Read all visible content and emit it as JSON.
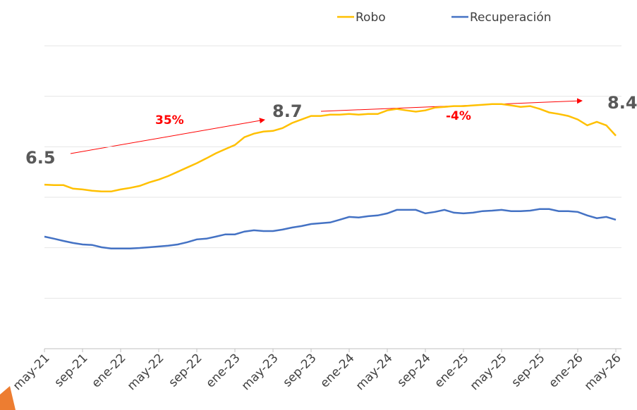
{
  "chart_data": {
    "type": "line",
    "categories": [
      "may-21",
      null,
      null,
      null,
      "sep-21",
      null,
      null,
      null,
      "ene-22",
      null,
      null,
      null,
      "may-22",
      null,
      null,
      null,
      "sep-22",
      null,
      null,
      null,
      "ene-23",
      null,
      null,
      null,
      "may-23",
      null,
      null,
      null,
      "sep-23",
      null,
      null,
      null,
      "ene-24",
      null,
      null,
      null,
      "may-24",
      null,
      null,
      null,
      "sep-24",
      null,
      null,
      null,
      "ene-25",
      null,
      null,
      null,
      "may-25",
      null,
      null,
      null,
      "sep-25",
      null,
      null,
      null,
      "ene-26",
      null,
      null,
      null,
      "may-26"
    ],
    "series": [
      {
        "name": "Robo",
        "color": "#ffc000",
        "values": [
          6.5,
          6.48,
          6.48,
          6.34,
          6.31,
          6.26,
          6.23,
          6.23,
          6.31,
          6.37,
          6.45,
          6.59,
          6.7,
          6.84,
          7.01,
          7.18,
          7.35,
          7.54,
          7.74,
          7.91,
          8.07,
          8.38,
          8.52,
          8.6,
          8.63,
          8.74,
          8.94,
          9.08,
          9.22,
          9.22,
          9.27,
          9.27,
          9.3,
          9.27,
          9.3,
          9.3,
          9.44,
          9.5,
          9.44,
          9.39,
          9.44,
          9.55,
          9.58,
          9.61,
          9.61,
          9.64,
          9.66,
          9.69,
          9.69,
          9.64,
          9.58,
          9.61,
          9.5,
          9.36,
          9.3,
          9.22,
          9.08,
          8.85,
          8.99,
          8.85,
          8.44
        ]
      },
      {
        "name": "Recuperación",
        "color": "#4472c4",
        "values": [
          4.44,
          4.36,
          4.27,
          4.19,
          4.13,
          4.11,
          4.02,
          3.97,
          3.97,
          3.97,
          3.99,
          4.02,
          4.05,
          4.08,
          4.13,
          4.22,
          4.33,
          4.36,
          4.44,
          4.53,
          4.53,
          4.64,
          4.69,
          4.66,
          4.66,
          4.72,
          4.8,
          4.86,
          4.94,
          4.97,
          5.0,
          5.11,
          5.22,
          5.2,
          5.25,
          5.28,
          5.36,
          5.5,
          5.5,
          5.5,
          5.36,
          5.42,
          5.5,
          5.39,
          5.36,
          5.39,
          5.45,
          5.47,
          5.5,
          5.45,
          5.45,
          5.47,
          5.53,
          5.53,
          5.45,
          5.45,
          5.42,
          5.28,
          5.17,
          5.22,
          5.11
        ]
      }
    ],
    "annotations": [
      "6.5",
      "35%",
      "8.7",
      "-4%",
      "8.4"
    ],
    "ylim": [
      0,
      12
    ],
    "yticks": [
      0,
      2,
      4,
      6,
      8,
      10,
      12
    ],
    "grid": true,
    "legend": "top"
  }
}
